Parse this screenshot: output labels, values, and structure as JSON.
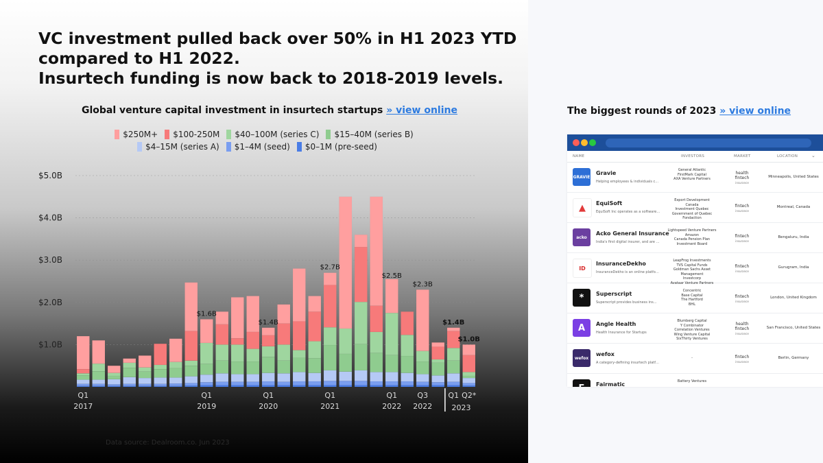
{
  "headline": [
    "VC investment pulled back over 50% in H1 2023 YTD",
    "compared to H1 2022.",
    "Insurtech funding is now back to 2018-2019 levels."
  ],
  "chart_title": "Global venture capital investment in insurtech startups",
  "chart_link": "» view online",
  "footnote": "Data source: Dealroom.co. Jun 2023",
  "legend": [
    {
      "label": "$250M+",
      "color": "#ff9f9f"
    },
    {
      "label": "$100-250M",
      "color": "#f77a7a"
    },
    {
      "label": "$40–100M (series C)",
      "color": "#9fd69f"
    },
    {
      "label": "$15–40M (series B)",
      "color": "#8fcc8f"
    },
    {
      "label": "$4–15M (series A)",
      "color": "#b5c9f5"
    },
    {
      "label": "$1–4M (seed)",
      "color": "#7a9ef0"
    },
    {
      "label": "$0–1M (pre-seed)",
      "color": "#4a7de6"
    }
  ],
  "chart_data": {
    "type": "bar",
    "stacked": true,
    "ylim": [
      0,
      5.0
    ],
    "yticks": [
      "$1.0B",
      "$2.0B",
      "$3.0B",
      "$4.0B",
      "$5.0B"
    ],
    "ytick_values": [
      1,
      2,
      3,
      4,
      5
    ],
    "grid": true,
    "x_labels": [
      {
        "index": 0,
        "top": "Q1",
        "bottom": "2017"
      },
      {
        "index": 8,
        "top": "Q1",
        "bottom": "2019"
      },
      {
        "index": 12,
        "top": "Q1",
        "bottom": "2020"
      },
      {
        "index": 16,
        "top": "Q1",
        "bottom": "2021"
      },
      {
        "index": 20,
        "top": "Q1",
        "bottom": "2022"
      },
      {
        "index": 22,
        "top": "Q3",
        "bottom": "2022"
      },
      {
        "index": 24,
        "top": "Q1",
        "bottom": ""
      },
      {
        "index": 25,
        "top": "Q2*",
        "bottom": ""
      }
    ],
    "year_2023_label": "2023",
    "value_labels": [
      {
        "index": 8,
        "text": "$1.6B",
        "value": 1.6
      },
      {
        "index": 12,
        "text": "$1.4B",
        "value": 1.4
      },
      {
        "index": 16,
        "text": "$2.7B",
        "value": 2.7
      },
      {
        "index": 20,
        "text": "$2.5B",
        "value": 2.5
      },
      {
        "index": 22,
        "text": "$2.3B",
        "value": 2.3
      },
      {
        "index": 24,
        "text": "$1.4B",
        "value": 1.4
      },
      {
        "index": 25,
        "text": "$1.0B",
        "value": 1.0
      }
    ],
    "series_order_bottom_to_top": [
      "$0–1M (pre-seed)",
      "$1–4M (seed)",
      "$4–15M (series A)",
      "$15–40M (series B)",
      "$40–100M (series C)",
      "$100-250M",
      "$250M+"
    ],
    "bars": [
      [
        0.02,
        0.05,
        0.1,
        0.1,
        0.05,
        0.1,
        0.78
      ],
      [
        0.02,
        0.05,
        0.1,
        0.2,
        0.18,
        0.0,
        0.55
      ],
      [
        0.02,
        0.04,
        0.12,
        0.08,
        0.07,
        0.0,
        0.17
      ],
      [
        0.02,
        0.05,
        0.16,
        0.22,
        0.12,
        0.0,
        0.1
      ],
      [
        0.02,
        0.05,
        0.14,
        0.15,
        0.1,
        0.0,
        0.28
      ],
      [
        0.02,
        0.05,
        0.15,
        0.2,
        0.1,
        0.5,
        0.0
      ],
      [
        0.02,
        0.06,
        0.14,
        0.22,
        0.15,
        0.0,
        0.55
      ],
      [
        0.03,
        0.06,
        0.16,
        0.25,
        0.12,
        0.7,
        1.15
      ],
      [
        0.04,
        0.07,
        0.18,
        0.25,
        0.5,
        0.0,
        0.56
      ],
      [
        0.04,
        0.08,
        0.2,
        0.3,
        0.38,
        0.48,
        0.3
      ],
      [
        0.04,
        0.08,
        0.18,
        0.3,
        0.4,
        0.15,
        0.97
      ],
      [
        0.04,
        0.08,
        0.18,
        0.3,
        0.3,
        0.4,
        0.85
      ],
      [
        0.04,
        0.09,
        0.2,
        0.38,
        0.25,
        0.26,
        0.18
      ],
      [
        0.04,
        0.08,
        0.2,
        0.3,
        0.38,
        0.5,
        0.45
      ],
      [
        0.04,
        0.09,
        0.22,
        0.34,
        0.18,
        0.68,
        1.25
      ],
      [
        0.04,
        0.09,
        0.2,
        0.35,
        0.4,
        0.7,
        0.37
      ],
      [
        0.04,
        0.1,
        0.25,
        0.6,
        0.42,
        1.0,
        0.29
      ],
      [
        0.04,
        0.1,
        0.22,
        0.42,
        0.6,
        0.0,
        3.12
      ],
      [
        0.04,
        0.1,
        0.25,
        0.62,
        1.0,
        1.3,
        0.29
      ],
      [
        0.04,
        0.09,
        0.22,
        0.45,
        0.5,
        0.62,
        2.58
      ],
      [
        0.04,
        0.09,
        0.22,
        0.4,
        1.0,
        0.0,
        0.8
      ],
      [
        0.04,
        0.09,
        0.2,
        0.4,
        0.5,
        0.55,
        0.0
      ],
      [
        0.04,
        0.08,
        0.18,
        0.3,
        0.25,
        0.0,
        1.45
      ],
      [
        0.04,
        0.07,
        0.16,
        0.3,
        0.08,
        0.3,
        0.1
      ],
      [
        0.04,
        0.08,
        0.2,
        0.3,
        0.3,
        0.4,
        0.08
      ],
      [
        0.03,
        0.06,
        0.12,
        0.05,
        0.09,
        0.4,
        0.25
      ]
    ]
  },
  "right": {
    "title": "The biggest rounds of 2023",
    "link": "» view online",
    "columns": [
      "NAME",
      "INVESTORS",
      "MARKET",
      "LOCATION"
    ],
    "rows": [
      {
        "logo_text": "GRAVIE",
        "logo_color": "#2d6fd6",
        "name": "Gravie",
        "desc": "Helping employees & individuals c…",
        "investors": [
          "General Atlantic",
          "FirstMark Capital",
          "AXA Venture Partners"
        ],
        "market": [
          "health",
          "fintech",
          "insurance"
        ],
        "location": "Minneapolis, United States"
      },
      {
        "logo_text": "▲",
        "logo_color": "#ffffff",
        "logo_fg": "#e23a3a",
        "name": "EquiSoft",
        "desc": "EquiSoft Inc operates as a software…",
        "investors": [
          "Export Development Canada",
          "Investment Quebec",
          "Government of Quebec",
          "Fondaction"
        ],
        "market": [
          "fintech",
          "insurance"
        ],
        "location": "Montreal, Canada"
      },
      {
        "logo_text": "acko",
        "logo_color": "#6b3fa0",
        "name": "Acko General Insurance",
        "desc": "India's first digital insurer, and are …",
        "investors": [
          "Lightspeed Venture Partners",
          "Amazon",
          "Canada Pension Plan",
          "Investment Board"
        ],
        "market": [
          "fintech",
          "insurance"
        ],
        "location": "Bengaluru, India"
      },
      {
        "logo_text": "ID",
        "logo_color": "#ffffff",
        "logo_fg": "#d82a2a",
        "name": "InsuranceDekho",
        "desc": "InsuranceDekho is an online platfo…",
        "investors": [
          "LeapFrog Investments",
          "TVS Capital Funds",
          "Goldman Sachs Asset",
          "Management",
          "Investcorp",
          "Avataar Venture Partners"
        ],
        "market": [
          "fintech",
          "insurance"
        ],
        "location": "Gurugram, India"
      },
      {
        "logo_text": "*",
        "logo_color": "#111111",
        "name": "Superscript",
        "desc": "Superscript provides business ins…",
        "investors": [
          "Concentric",
          "Base Capital",
          "The Hartford",
          "BHL"
        ],
        "market": [
          "fintech",
          "insurance"
        ],
        "location": "London, United Kingdom"
      },
      {
        "logo_text": "A",
        "logo_color": "#7b3fe4",
        "name": "Angle Health",
        "desc": "Health Insurance for Startups",
        "investors": [
          "Blumberg Capital",
          "Y Combinator",
          "Correlation Ventures",
          "Wing Venture Capital",
          "SixThirty Ventures"
        ],
        "market": [
          "health",
          "fintech",
          "insurance"
        ],
        "location": "San Francisco, United States"
      },
      {
        "logo_text": "wefox",
        "logo_color": "#3a2a6a",
        "name": "wefox",
        "desc": "A category-defining insurtech platf…",
        "investors": [
          "-"
        ],
        "market": [
          "fintech",
          "insurance"
        ],
        "location": "Berlin, Germany"
      },
      {
        "logo_text": "F",
        "logo_color": "#111111",
        "name": "Fairmatic",
        "desc": "",
        "investors": [
          "Battery Ventures"
        ],
        "market": [
          ""
        ],
        "location": ""
      }
    ]
  }
}
